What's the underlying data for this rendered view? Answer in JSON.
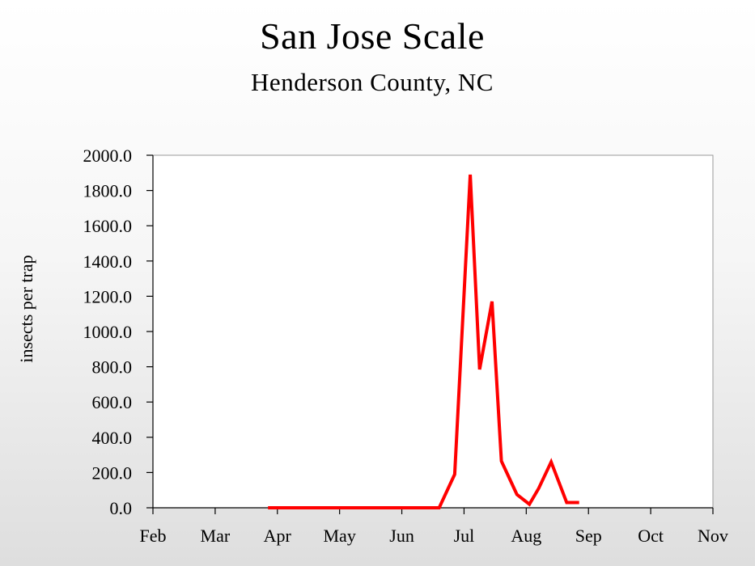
{
  "chart_data": {
    "type": "line",
    "title": "San Jose Scale",
    "subtitle": "Henderson County, NC",
    "xlabel": "",
    "ylabel": "insects per trap",
    "xlim": [
      0,
      9
    ],
    "ylim": [
      0,
      2000
    ],
    "x_ticks": [
      "Feb",
      "Mar",
      "Apr",
      "May",
      "Jun",
      "Jul",
      "Aug",
      "Sep",
      "Oct",
      "Nov"
    ],
    "y_ticks": [
      "0.0",
      "200.0",
      "400.0",
      "600.0",
      "800.0",
      "1000.0",
      "1200.0",
      "1400.0",
      "1600.0",
      "1800.0",
      "2000.0"
    ],
    "grid": false,
    "series": [
      {
        "name": "San Jose Scale",
        "color": "#ff0000",
        "x": [
          1.85,
          2.2,
          2.6,
          3.0,
          3.4,
          3.8,
          4.2,
          4.4,
          4.6,
          4.85,
          5.1,
          5.25,
          5.45,
          5.6,
          5.85,
          6.05,
          6.2,
          6.4,
          6.65,
          6.85
        ],
        "y": [
          0,
          0,
          0,
          0,
          0,
          0,
          0,
          0,
          0,
          190,
          1890,
          785,
          1170,
          265,
          75,
          20,
          110,
          260,
          30,
          30
        ]
      }
    ]
  }
}
